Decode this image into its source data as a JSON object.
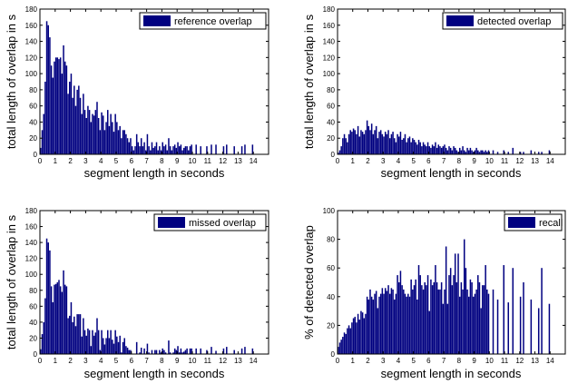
{
  "chart_data": [
    {
      "type": "bar",
      "xlabel": "segment length in seconds",
      "ylabel": "total length of overlap in s",
      "legend": "reference overlap",
      "legend_position": "top-right",
      "color": "#000080",
      "xlim": [
        0,
        15
      ],
      "ylim": [
        0,
        180
      ],
      "xticks": [
        "0",
        "1",
        "2",
        "3",
        "4",
        "5",
        "6",
        "7",
        "8",
        "9",
        "10",
        "11",
        "12",
        "13",
        "14"
      ],
      "yticks": [
        "0",
        "20",
        "40",
        "60",
        "80",
        "100",
        "120",
        "140",
        "160",
        "180"
      ],
      "x": [
        0.05,
        0.15,
        0.25,
        0.35,
        0.45,
        0.55,
        0.65,
        0.75,
        0.85,
        0.95,
        1.05,
        1.15,
        1.25,
        1.35,
        1.45,
        1.55,
        1.65,
        1.75,
        1.85,
        1.95,
        2.05,
        2.15,
        2.25,
        2.35,
        2.45,
        2.55,
        2.65,
        2.75,
        2.85,
        2.95,
        3.05,
        3.15,
        3.25,
        3.35,
        3.45,
        3.55,
        3.65,
        3.75,
        3.85,
        3.95,
        4.05,
        4.15,
        4.25,
        4.35,
        4.45,
        4.55,
        4.65,
        4.75,
        4.85,
        4.95,
        5.05,
        5.15,
        5.25,
        5.35,
        5.45,
        5.55,
        5.65,
        5.75,
        5.85,
        5.95,
        6.05,
        6.15,
        6.25,
        6.35,
        6.45,
        6.55,
        6.65,
        6.75,
        6.85,
        6.95,
        7.05,
        7.15,
        7.25,
        7.35,
        7.45,
        7.55,
        7.65,
        7.75,
        7.85,
        7.95,
        8.05,
        8.15,
        8.25,
        8.35,
        8.45,
        8.55,
        8.65,
        8.75,
        8.85,
        8.95,
        9.05,
        9.15,
        9.25,
        9.35,
        9.45,
        9.55,
        9.65,
        9.75,
        9.85,
        9.95,
        10.25,
        10.55,
        10.95,
        11.25,
        11.55,
        12.05,
        12.25,
        12.75,
        13.25,
        13.45,
        13.95
      ],
      "values": [
        8,
        30,
        50,
        90,
        165,
        160,
        145,
        110,
        95,
        115,
        120,
        120,
        118,
        120,
        100,
        135,
        115,
        110,
        75,
        90,
        100,
        70,
        85,
        60,
        80,
        85,
        70,
        50,
        75,
        55,
        45,
        60,
        55,
        40,
        50,
        48,
        55,
        65,
        45,
        30,
        52,
        48,
        30,
        40,
        55,
        35,
        50,
        40,
        28,
        50,
        40,
        30,
        35,
        20,
        30,
        30,
        25,
        20,
        15,
        20,
        10,
        5,
        10,
        25,
        15,
        10,
        20,
        10,
        15,
        5,
        25,
        10,
        5,
        15,
        8,
        10,
        15,
        5,
        10,
        5,
        15,
        10,
        12,
        5,
        20,
        10,
        5,
        10,
        12,
        8,
        15,
        10,
        12,
        5,
        8,
        10,
        10,
        5,
        10,
        12,
        12,
        10,
        10,
        12,
        12,
        10,
        12,
        10,
        10,
        12,
        12
      ]
    },
    {
      "type": "bar",
      "xlabel": "segment length in seconds",
      "ylabel": "total length of overlap in s",
      "legend": "detected overlap",
      "legend_position": "top-right",
      "color": "#000080",
      "xlim": [
        0,
        15
      ],
      "ylim": [
        0,
        180
      ],
      "xticks": [
        "0",
        "1",
        "2",
        "3",
        "4",
        "5",
        "6",
        "7",
        "8",
        "9",
        "10",
        "11",
        "12",
        "13",
        "14"
      ],
      "yticks": [
        "0",
        "20",
        "40",
        "60",
        "80",
        "100",
        "120",
        "140",
        "160",
        "180"
      ],
      "x": [
        0.05,
        0.15,
        0.25,
        0.35,
        0.45,
        0.55,
        0.65,
        0.75,
        0.85,
        0.95,
        1.05,
        1.15,
        1.25,
        1.35,
        1.45,
        1.55,
        1.65,
        1.75,
        1.85,
        1.95,
        2.05,
        2.15,
        2.25,
        2.35,
        2.45,
        2.55,
        2.65,
        2.75,
        2.85,
        2.95,
        3.05,
        3.15,
        3.25,
        3.35,
        3.45,
        3.55,
        3.65,
        3.75,
        3.85,
        3.95,
        4.05,
        4.15,
        4.25,
        4.35,
        4.45,
        4.55,
        4.65,
        4.75,
        4.85,
        4.95,
        5.05,
        5.15,
        5.25,
        5.35,
        5.45,
        5.55,
        5.65,
        5.75,
        5.85,
        5.95,
        6.05,
        6.15,
        6.25,
        6.35,
        6.45,
        6.55,
        6.65,
        6.75,
        6.85,
        6.95,
        7.05,
        7.15,
        7.25,
        7.35,
        7.45,
        7.55,
        7.65,
        7.75,
        7.85,
        7.95,
        8.05,
        8.15,
        8.25,
        8.35,
        8.45,
        8.55,
        8.65,
        8.75,
        8.85,
        8.95,
        9.05,
        9.15,
        9.25,
        9.35,
        9.45,
        9.55,
        9.65,
        9.75,
        9.85,
        9.95,
        10.25,
        10.55,
        10.95,
        11.25,
        11.55,
        12.05,
        12.25,
        12.75,
        13.25,
        13.45,
        13.95
      ],
      "values": [
        2,
        5,
        10,
        20,
        25,
        20,
        15,
        25,
        30,
        28,
        32,
        30,
        25,
        35,
        22,
        30,
        28,
        25,
        30,
        42,
        35,
        30,
        38,
        25,
        30,
        35,
        20,
        28,
        30,
        25,
        22,
        28,
        25,
        30,
        20,
        25,
        28,
        20,
        15,
        25,
        22,
        28,
        18,
        20,
        25,
        15,
        20,
        22,
        15,
        20,
        18,
        15,
        12,
        18,
        15,
        10,
        15,
        12,
        10,
        15,
        10,
        8,
        12,
        10,
        15,
        8,
        12,
        10,
        8,
        10,
        12,
        8,
        5,
        10,
        8,
        5,
        10,
        8,
        5,
        3,
        8,
        5,
        10,
        5,
        3,
        8,
        5,
        8,
        5,
        3,
        5,
        8,
        5,
        3,
        5,
        5,
        3,
        5,
        3,
        5,
        5,
        3,
        5,
        3,
        8,
        3,
        3,
        5,
        3,
        3,
        5
      ]
    },
    {
      "type": "bar",
      "xlabel": "segment length in seconds",
      "ylabel": "total length of overlap in s",
      "legend": "missed overlap",
      "legend_position": "top-right",
      "color": "#000080",
      "xlim": [
        0,
        15
      ],
      "ylim": [
        0,
        180
      ],
      "xticks": [
        "0",
        "1",
        "2",
        "3",
        "4",
        "5",
        "6",
        "7",
        "8",
        "9",
        "10",
        "11",
        "12",
        "13",
        "14"
      ],
      "yticks": [
        "0",
        "20",
        "40",
        "60",
        "80",
        "100",
        "120",
        "140",
        "160",
        "180"
      ],
      "x": [
        0.05,
        0.15,
        0.25,
        0.35,
        0.45,
        0.55,
        0.65,
        0.75,
        0.85,
        0.95,
        1.05,
        1.15,
        1.25,
        1.35,
        1.45,
        1.55,
        1.65,
        1.75,
        1.85,
        1.95,
        2.05,
        2.15,
        2.25,
        2.35,
        2.45,
        2.55,
        2.65,
        2.75,
        2.85,
        2.95,
        3.05,
        3.15,
        3.25,
        3.35,
        3.45,
        3.55,
        3.65,
        3.75,
        3.85,
        3.95,
        4.05,
        4.15,
        4.25,
        4.35,
        4.45,
        4.55,
        4.65,
        4.75,
        4.85,
        4.95,
        5.05,
        5.15,
        5.25,
        5.35,
        5.45,
        5.55,
        5.65,
        5.75,
        5.85,
        5.95,
        6.05,
        6.15,
        6.25,
        6.35,
        6.45,
        6.55,
        6.65,
        6.75,
        6.85,
        6.95,
        7.05,
        7.15,
        7.25,
        7.35,
        7.45,
        7.55,
        7.65,
        7.75,
        7.85,
        7.95,
        8.05,
        8.15,
        8.25,
        8.35,
        8.45,
        8.55,
        8.65,
        8.75,
        8.85,
        8.95,
        9.05,
        9.15,
        9.25,
        9.35,
        9.45,
        9.55,
        9.65,
        9.75,
        9.85,
        9.95,
        10.25,
        10.55,
        10.95,
        11.25,
        11.55,
        12.05,
        12.25,
        12.75,
        13.25,
        13.45,
        13.95
      ],
      "values": [
        6,
        25,
        40,
        70,
        145,
        140,
        130,
        85,
        65,
        87,
        88,
        90,
        93,
        85,
        78,
        105,
        87,
        85,
        45,
        48,
        65,
        40,
        47,
        35,
        50,
        50,
        50,
        22,
        45,
        30,
        23,
        32,
        30,
        10,
        30,
        23,
        27,
        45,
        30,
        5,
        30,
        20,
        12,
        20,
        30,
        20,
        30,
        18,
        13,
        30,
        22,
        15,
        23,
        2,
        15,
        20,
        10,
        8,
        5,
        5,
        0,
        0,
        0,
        15,
        0,
        2,
        8,
        0,
        7,
        0,
        13,
        2,
        0,
        5,
        0,
        5,
        5,
        0,
        5,
        2,
        7,
        5,
        2,
        0,
        17,
        2,
        0,
        2,
        7,
        5,
        10,
        2,
        7,
        2,
        3,
        5,
        7,
        0,
        7,
        7,
        7,
        7,
        5,
        9,
        4,
        7,
        9,
        5,
        7,
        9,
        7
      ]
    },
    {
      "type": "bar",
      "xlabel": "segment length in seconds",
      "ylabel": "% of detected overlap",
      "legend": "recall",
      "legend_position": "top-right",
      "color": "#000080",
      "xlim": [
        0,
        15
      ],
      "ylim": [
        0,
        100
      ],
      "xticks": [
        "0",
        "1",
        "2",
        "3",
        "4",
        "5",
        "6",
        "7",
        "8",
        "9",
        "10",
        "11",
        "12",
        "13",
        "14"
      ],
      "yticks": [
        "0",
        "20",
        "40",
        "60",
        "80",
        "100"
      ],
      "x": [
        0.05,
        0.15,
        0.25,
        0.35,
        0.45,
        0.55,
        0.65,
        0.75,
        0.85,
        0.95,
        1.05,
        1.15,
        1.25,
        1.35,
        1.45,
        1.55,
        1.65,
        1.75,
        1.85,
        1.95,
        2.05,
        2.15,
        2.25,
        2.35,
        2.45,
        2.55,
        2.65,
        2.75,
        2.85,
        2.95,
        3.05,
        3.15,
        3.25,
        3.35,
        3.45,
        3.55,
        3.65,
        3.75,
        3.85,
        3.95,
        4.05,
        4.15,
        4.25,
        4.35,
        4.45,
        4.55,
        4.65,
        4.75,
        4.85,
        4.95,
        5.05,
        5.15,
        5.25,
        5.35,
        5.45,
        5.55,
        5.65,
        5.75,
        5.85,
        5.95,
        6.05,
        6.15,
        6.25,
        6.35,
        6.45,
        6.55,
        6.65,
        6.75,
        6.85,
        6.95,
        7.05,
        7.15,
        7.25,
        7.35,
        7.45,
        7.55,
        7.65,
        7.75,
        7.85,
        7.95,
        8.05,
        8.15,
        8.25,
        8.35,
        8.45,
        8.55,
        8.65,
        8.75,
        8.85,
        8.95,
        9.05,
        9.15,
        9.25,
        9.35,
        9.45,
        9.55,
        9.65,
        9.75,
        9.85,
        9.95,
        10.25,
        10.55,
        10.95,
        11.25,
        11.55,
        12.05,
        12.25,
        12.75,
        13.25,
        13.45,
        13.95
      ],
      "values": [
        5,
        8,
        10,
        12,
        15,
        14,
        18,
        20,
        18,
        22,
        25,
        26,
        22,
        28,
        24,
        30,
        29,
        25,
        28,
        40,
        38,
        45,
        40,
        38,
        42,
        44,
        32,
        40,
        42,
        46,
        42,
        46,
        44,
        48,
        42,
        46,
        45,
        38,
        42,
        55,
        50,
        58,
        48,
        45,
        42,
        40,
        42,
        40,
        52,
        45,
        48,
        52,
        38,
        62,
        55,
        48,
        45,
        50,
        48,
        55,
        30,
        52,
        48,
        50,
        62,
        50,
        45,
        45,
        50,
        35,
        45,
        75,
        35,
        55,
        60,
        48,
        55,
        70,
        50,
        70,
        40,
        50,
        45,
        80,
        60,
        45,
        40,
        52,
        50,
        40,
        42,
        45,
        55,
        50,
        32,
        48,
        48,
        62,
        45,
        42,
        45,
        38,
        62,
        36,
        60,
        40,
        50,
        38,
        32,
        60,
        35
      ]
    }
  ]
}
